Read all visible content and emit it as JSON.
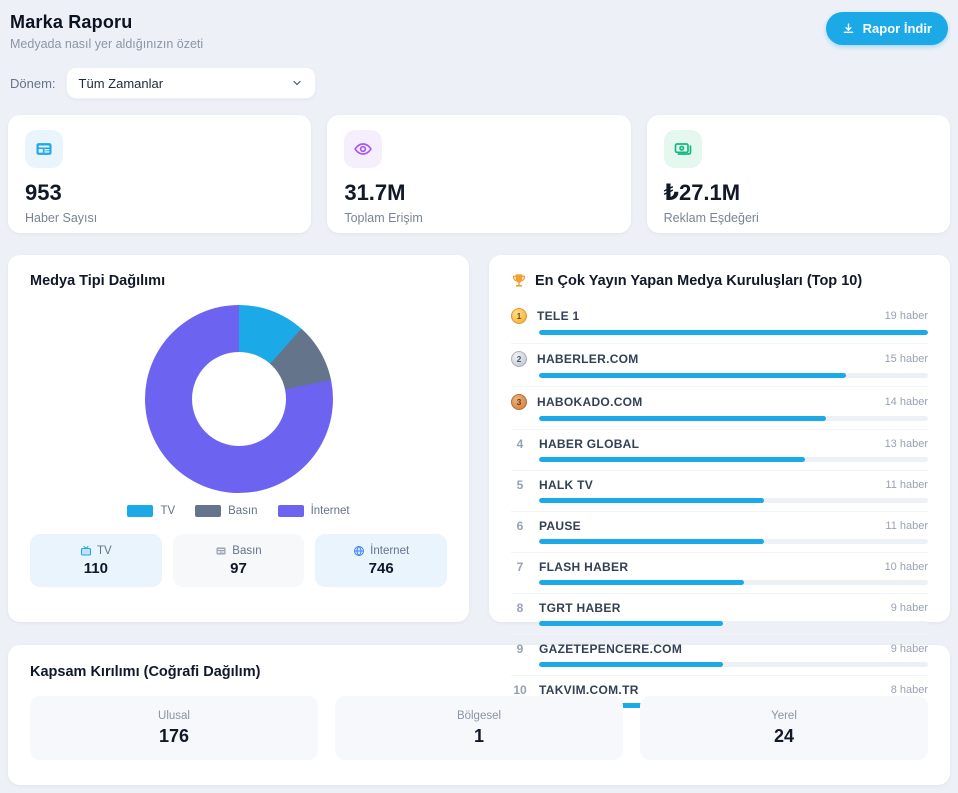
{
  "header": {
    "title": "Marka Raporu",
    "subtitle": "Medyada nasıl yer aldığınızın özeti",
    "download_label": "Rapor İndir",
    "download_icon": "download-icon",
    "period_label": "Dönem:",
    "period_value": "Tüm Zamanlar",
    "accent_color": "#1ca9e8"
  },
  "stats": [
    {
      "value": "953",
      "label": "Haber Sayısı",
      "icon": "newspaper-icon",
      "icon_color": "#1ca9e8"
    },
    {
      "value": "31.7M",
      "label": "Toplam Erişim",
      "icon": "eye-icon",
      "icon_color": "#a855f7"
    },
    {
      "value": "₺27.1M",
      "label": "Reklam Eşdeğeri",
      "icon": "banknote-icon",
      "icon_color": "#10b981"
    }
  ],
  "media_distribution": {
    "title": "Medya Tipi Dağılımı",
    "items": [
      {
        "label": "TV",
        "value": 110,
        "color": "#1ca9e8",
        "icon": "tv-icon",
        "tint": "blue"
      },
      {
        "label": "Basın",
        "value": 97,
        "color": "#64748b",
        "icon": "newspaper-icon",
        "tint": "gray"
      },
      {
        "label": "İnternet",
        "value": 746,
        "color": "#6c63f0",
        "icon": "globe-icon",
        "tint": "blue"
      }
    ]
  },
  "top_outlets": {
    "icon": "trophy-icon",
    "title": "En Çok Yayın Yapan Medya Kuruluşları (Top 10)",
    "unit": "haber",
    "rows": [
      {
        "rank": 1,
        "medal": "gold",
        "name": "TELE 1",
        "count": 19
      },
      {
        "rank": 2,
        "medal": "silver",
        "name": "HABERLER.COM",
        "count": 15
      },
      {
        "rank": 3,
        "medal": "bronze",
        "name": "HABOKADO.COM",
        "count": 14
      },
      {
        "rank": 4,
        "medal": null,
        "name": "HABER GLOBAL",
        "count": 13
      },
      {
        "rank": 5,
        "medal": null,
        "name": "HALK TV",
        "count": 11
      },
      {
        "rank": 6,
        "medal": null,
        "name": "PAUSE",
        "count": 11
      },
      {
        "rank": 7,
        "medal": null,
        "name": "FLASH HABER",
        "count": 10
      },
      {
        "rank": 8,
        "medal": null,
        "name": "TGRT HABER",
        "count": 9
      },
      {
        "rank": 9,
        "medal": null,
        "name": "GAZETEPENCERE.COM",
        "count": 9
      },
      {
        "rank": 10,
        "medal": null,
        "name": "TAKVIM.COM.TR",
        "count": 8
      }
    ]
  },
  "coverage": {
    "title": "Kapsam Kırılımı (Coğrafi Dağılım)",
    "items": [
      {
        "label": "Ulusal",
        "value": "176"
      },
      {
        "label": "Bölgesel",
        "value": "1"
      },
      {
        "label": "Yerel",
        "value": "24"
      }
    ]
  },
  "chart_data": [
    {
      "type": "pie",
      "donut": true,
      "title": "Medya Tipi Dağılımı",
      "labels": [
        "TV",
        "Basın",
        "İnternet"
      ],
      "values": [
        110,
        97,
        746
      ],
      "colors": [
        "#1ca9e8",
        "#64748b",
        "#6c63f0"
      ],
      "legend_position": "bottom"
    },
    {
      "type": "bar",
      "orientation": "horizontal",
      "title": "En Çok Yayın Yapan Medya Kuruluşları (Top 10)",
      "categories": [
        "TELE 1",
        "HABERLER.COM",
        "HABOKADO.COM",
        "HABER GLOBAL",
        "HALK TV",
        "PAUSE",
        "FLASH HABER",
        "TGRT HABER",
        "GAZETEPENCERE.COM",
        "TAKVIM.COM.TR"
      ],
      "values": [
        19,
        15,
        14,
        13,
        11,
        11,
        10,
        9,
        9,
        8
      ],
      "unit": "haber",
      "xlim": [
        0,
        19
      ]
    }
  ]
}
